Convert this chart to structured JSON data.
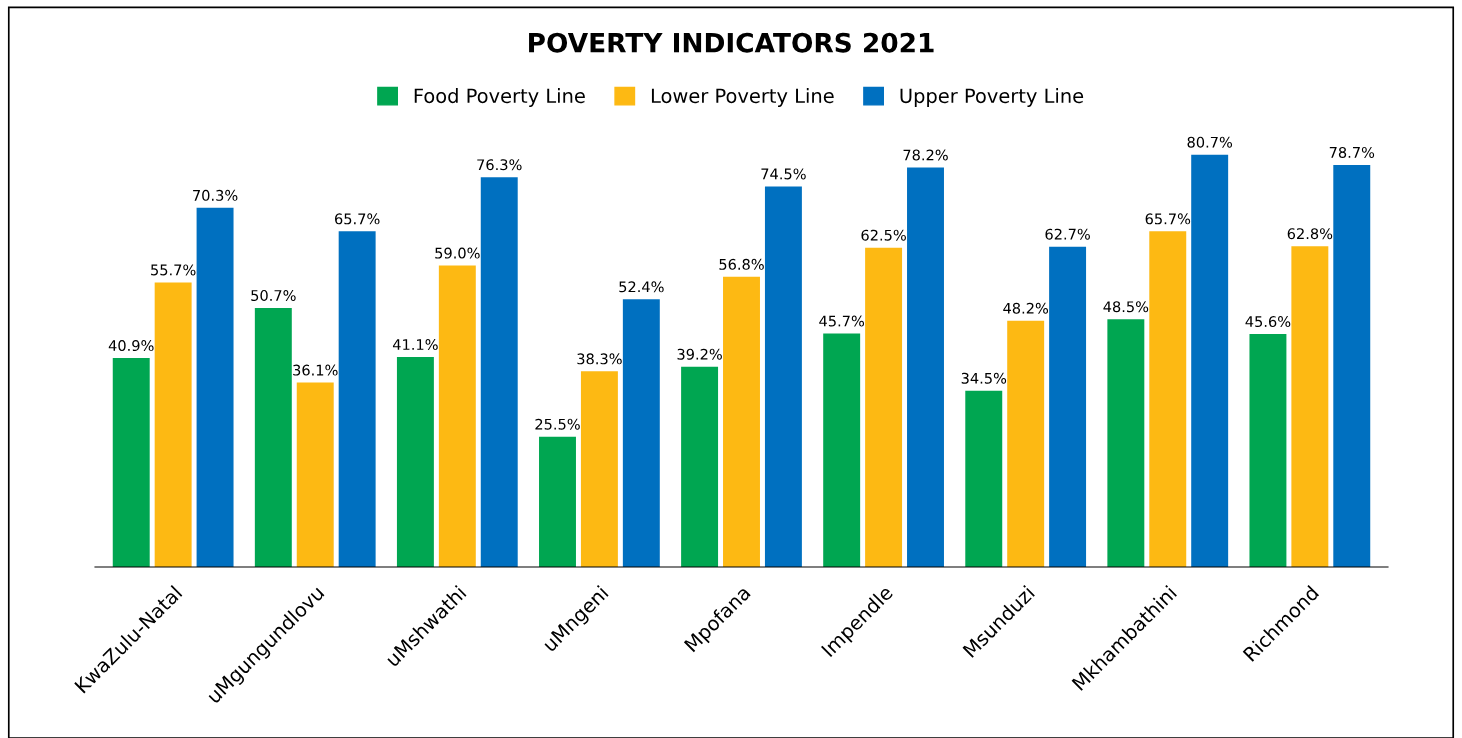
{
  "chart_data": {
    "type": "bar",
    "title": "POVERTY INDICATORS 2021",
    "categories": [
      "KwaZulu-Natal",
      "uMgungundlovu",
      "uMshwathi",
      "uMngeni",
      "Mpofana",
      "Impendle",
      "Msunduzi",
      "Mkhambathini",
      "Richmond"
    ],
    "series": [
      {
        "name": "Food Poverty Line",
        "color": "#00a651",
        "values": [
          40.9,
          50.7,
          41.1,
          25.5,
          39.2,
          45.7,
          34.5,
          48.5,
          45.6
        ],
        "value_labels": [
          "40.9%",
          "50.7%",
          "41.1%",
          "25.5%",
          "39.2%",
          "45.7%",
          "34.5%",
          "48.5%",
          "45.6%"
        ]
      },
      {
        "name": "Lower Poverty Line",
        "color": "#fdb913",
        "values": [
          55.7,
          36.1,
          59.0,
          38.3,
          56.8,
          62.5,
          48.2,
          65.7,
          62.8
        ],
        "value_labels": [
          "55.7%",
          "36.1%",
          "59.0%",
          "38.3%",
          "56.8%",
          "62.5%",
          "48.2%",
          "65.7%",
          "62.8%"
        ]
      },
      {
        "name": "Upper Poverty Line",
        "color": "#0070c0",
        "values": [
          70.3,
          65.7,
          76.3,
          52.4,
          74.5,
          78.2,
          62.7,
          80.7,
          78.7
        ],
        "value_labels": [
          "70.3%",
          "65.7%",
          "76.3%",
          "52.4%",
          "74.5%",
          "78.2%",
          "62.7%",
          "80.7%",
          "78.7%"
        ]
      }
    ],
    "legend": "top",
    "grid": false
  }
}
